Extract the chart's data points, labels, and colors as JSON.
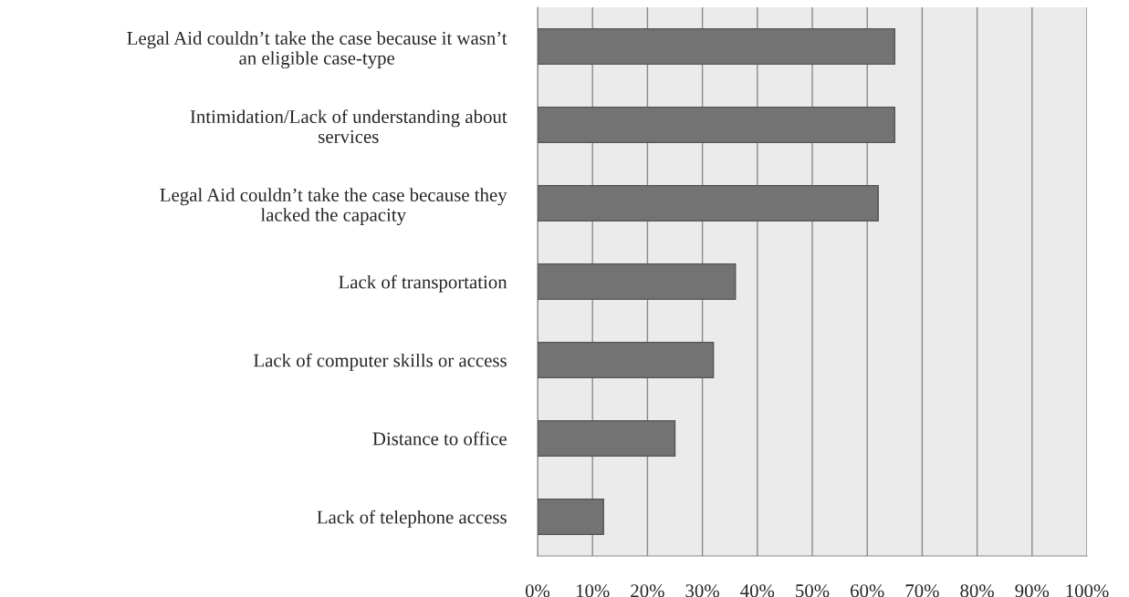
{
  "chart_data": {
    "type": "bar",
    "orientation": "horizontal",
    "categories": [
      "Legal Aid couldn’t take the case because it wasn’t\nan eligible case-type",
      "Intimidation/Lack of understanding about\nservices",
      "Legal Aid couldn’t take the case because they\nlacked the capacity",
      "Lack of transportation",
      "Lack of computer skills or access",
      "Distance to office",
      "Lack of telephone access"
    ],
    "values": [
      65,
      65,
      62,
      36,
      32,
      25,
      12
    ],
    "color": "#737373",
    "xlim": [
      0,
      100
    ],
    "xticks": [
      {
        "value": 0,
        "label": "0%"
      },
      {
        "value": 10,
        "label": "10%"
      },
      {
        "value": 20,
        "label": "20%"
      },
      {
        "value": 30,
        "label": "30%"
      },
      {
        "value": 40,
        "label": "40%"
      },
      {
        "value": 50,
        "label": "50%"
      },
      {
        "value": 60,
        "label": "60%"
      },
      {
        "value": 70,
        "label": "70%"
      },
      {
        "value": 80,
        "label": "80%"
      },
      {
        "value": 90,
        "label": "90%"
      },
      {
        "value": 100,
        "label": "100%"
      }
    ],
    "grid": "x",
    "legend": false
  }
}
